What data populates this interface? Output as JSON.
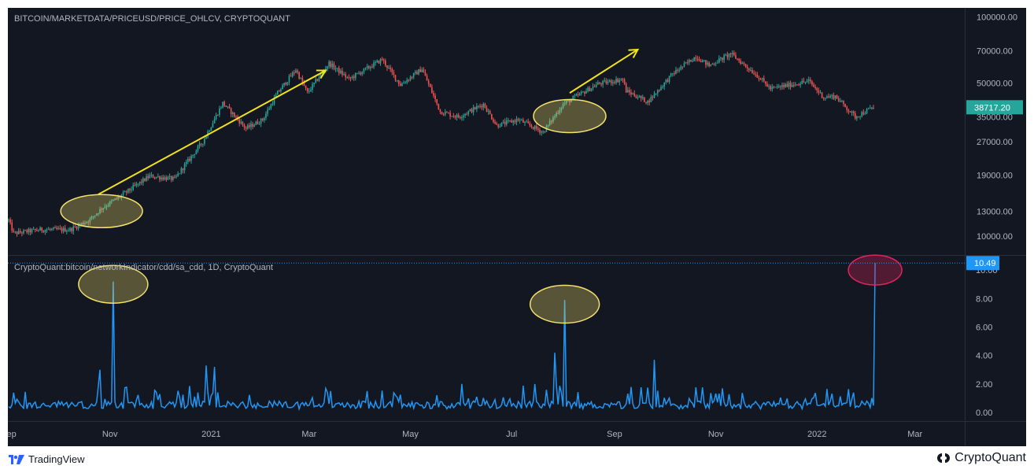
{
  "chart_data": [
    {
      "type": "candlestick",
      "title": "BITCOIN/MARKETDATA/PRICEUSD/PRICE_OHLCV, CRYPTOQUANT",
      "y_scale": "log",
      "ylim": [
        8200,
        110000
      ],
      "y_ticks": [
        "100000.00",
        "70000.00",
        "50000.00",
        "35000.00",
        "27000.00",
        "19000.00",
        "13000.00",
        "10000.00"
      ],
      "last_price_label": "38717.20",
      "price_path": [
        [
          "2020-09-01",
          11800
        ],
        [
          "2020-09-04",
          10300
        ],
        [
          "2020-09-20",
          10700
        ],
        [
          "2020-10-08",
          10700
        ],
        [
          "2020-10-20",
          11900
        ],
        [
          "2020-10-27",
          13400
        ],
        [
          "2020-11-05",
          14800
        ],
        [
          "2020-11-25",
          18800
        ],
        [
          "2020-12-10",
          18200
        ],
        [
          "2020-12-16",
          21000
        ],
        [
          "2020-12-27",
          27000
        ],
        [
          "2021-01-08",
          40500
        ],
        [
          "2021-01-22",
          31000
        ],
        [
          "2021-02-01",
          34000
        ],
        [
          "2021-02-10",
          45000
        ],
        [
          "2021-02-21",
          57500
        ],
        [
          "2021-02-28",
          45000
        ],
        [
          "2021-03-13",
          61500
        ],
        [
          "2021-03-25",
          52000
        ],
        [
          "2021-04-14",
          64000
        ],
        [
          "2021-04-25",
          49000
        ],
        [
          "2021-05-08",
          58000
        ],
        [
          "2021-05-19",
          37000
        ],
        [
          "2021-05-30",
          35000
        ],
        [
          "2021-06-14",
          40000
        ],
        [
          "2021-06-22",
          32000
        ],
        [
          "2021-07-05",
          34000
        ],
        [
          "2021-07-20",
          29800
        ],
        [
          "2021-08-01",
          40000
        ],
        [
          "2021-08-22",
          49500
        ],
        [
          "2021-09-06",
          52000
        ],
        [
          "2021-09-08",
          46000
        ],
        [
          "2021-09-21",
          41000
        ],
        [
          "2021-10-06",
          55000
        ],
        [
          "2021-10-20",
          66000
        ],
        [
          "2021-10-28",
          60000
        ],
        [
          "2021-11-10",
          68000
        ],
        [
          "2021-11-26",
          54000
        ],
        [
          "2021-12-04",
          47000
        ],
        [
          "2021-12-27",
          51000
        ],
        [
          "2022-01-05",
          43000
        ],
        [
          "2022-01-12",
          43500
        ],
        [
          "2022-01-24",
          35000
        ],
        [
          "2022-02-04",
          38717
        ]
      ],
      "annotations": {
        "arrows": [
          {
            "from": [
              "2020-10-25",
              15500
            ],
            "to": [
              "2021-03-11",
              57000
            ]
          },
          {
            "from": [
              "2021-08-05",
              45000
            ],
            "to": [
              "2021-09-15",
              71000
            ]
          }
        ],
        "ellipses": [
          {
            "center": [
              "2020-10-27",
              13000
            ],
            "color": "#f4e26a"
          },
          {
            "center": [
              "2021-08-05",
              35300
            ],
            "color": "#f4e26a"
          }
        ]
      }
    },
    {
      "type": "line",
      "title": "CryptoQuant:bitcoin/networkIndicator/cdd/sa_cdd, 1D, CryptoQuant",
      "ylim": [
        -0.6,
        11.0
      ],
      "y_ticks": [
        "0.00",
        "2.00",
        "4.00",
        "6.00",
        "8.00",
        "10.00"
      ],
      "last_value_label": "10.49",
      "color": "#2196f3",
      "spikes": [
        {
          "date": "2020-11-03",
          "value": 9.2
        },
        {
          "date": "2020-10-26",
          "value": 3.0
        },
        {
          "date": "2020-12-29",
          "value": 3.3
        },
        {
          "date": "2021-01-03",
          "value": 3.2
        },
        {
          "date": "2021-07-27",
          "value": 4.2
        },
        {
          "date": "2021-08-02",
          "value": 7.9
        },
        {
          "date": "2021-09-25",
          "value": 3.7
        },
        {
          "date": "2022-02-05",
          "value": 10.49
        }
      ],
      "annotations": {
        "ellipses": [
          {
            "center": [
              "2020-11-03",
              9.0
            ],
            "color": "#f4e26a"
          },
          {
            "center": [
              "2021-08-02",
              7.6
            ],
            "color": "#f4e26a"
          },
          {
            "center": [
              "2022-02-05",
              10.0
            ],
            "color": "#e0245e"
          }
        ]
      }
    }
  ],
  "x_axis": {
    "start": "2020-09-01",
    "end": "2022-03-31",
    "ticks": [
      {
        "label": "Sep",
        "date": "2020-09-01"
      },
      {
        "label": "Nov",
        "date": "2020-11-01"
      },
      {
        "label": "2021",
        "date": "2021-01-01"
      },
      {
        "label": "Mar",
        "date": "2021-03-01"
      },
      {
        "label": "May",
        "date": "2021-05-01"
      },
      {
        "label": "Jul",
        "date": "2021-07-01"
      },
      {
        "label": "Sep",
        "date": "2021-09-01"
      },
      {
        "label": "Nov",
        "date": "2021-11-01"
      },
      {
        "label": "2022",
        "date": "2022-01-01"
      },
      {
        "label": "Mar",
        "date": "2022-03-01"
      }
    ]
  },
  "colors": {
    "background": "#131722",
    "up": "#26a69a",
    "down": "#ef5350",
    "cdd_line": "#2196f3",
    "price_label_bg": "#26a69a",
    "cdd_label_bg": "#2196f3",
    "arrow": "#f4e21c"
  },
  "footer": {
    "tradingview": "TradingView",
    "cryptoquant": "CryptoQuant"
  }
}
